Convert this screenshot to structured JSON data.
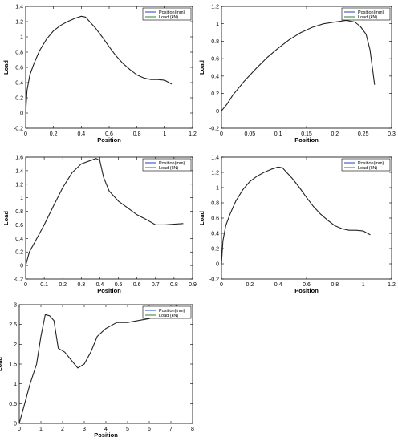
{
  "chart_data": [
    {
      "type": "line",
      "xlabel": "Position",
      "ylabel": "Load",
      "xlim": [
        0,
        1.2
      ],
      "ylim": [
        -0.2,
        1.4
      ],
      "xticks": [
        "0",
        "0.2",
        "0.4",
        "0.6",
        "0.8",
        "1",
        "1.2"
      ],
      "yticks": [
        "-0.2",
        "0",
        "0.2",
        "0.4",
        "0.6",
        "0.8",
        "1",
        "1.2",
        "1.4"
      ],
      "legend": {
        "placement": "top-right",
        "entries": [
          {
            "label": "Position(mm)",
            "color": "#1f3fbf"
          },
          {
            "label": "Load (kN)",
            "color": "#2e7d32"
          }
        ]
      },
      "series": [
        {
          "color": "#222222",
          "x": [
            0,
            0.01,
            0.03,
            0.06,
            0.1,
            0.15,
            0.2,
            0.25,
            0.3,
            0.35,
            0.4,
            0.43,
            0.45,
            0.5,
            0.55,
            0.6,
            0.65,
            0.7,
            0.75,
            0.8,
            0.85,
            0.9,
            0.95,
            1.0,
            1.05
          ],
          "y": [
            0,
            0.3,
            0.5,
            0.65,
            0.82,
            0.97,
            1.08,
            1.15,
            1.2,
            1.24,
            1.27,
            1.26,
            1.22,
            1.12,
            1.0,
            0.87,
            0.75,
            0.65,
            0.57,
            0.5,
            0.46,
            0.44,
            0.44,
            0.43,
            0.38
          ]
        }
      ]
    },
    {
      "type": "line",
      "xlabel": "Position",
      "ylabel": "Load",
      "xlim": [
        0,
        0.3
      ],
      "ylim": [
        -0.2,
        1.2
      ],
      "xticks": [
        "0",
        "0.05",
        "0.1",
        "0.15",
        "0.2",
        "0.25",
        "0.3"
      ],
      "yticks": [
        "-0.2",
        "0",
        "0.2",
        "0.4",
        "0.6",
        "0.8",
        "1",
        "1.2"
      ],
      "legend": {
        "placement": "top-right",
        "entries": [
          {
            "label": "Position(mm)",
            "color": "#1f3fbf"
          },
          {
            "label": "Load (kN)",
            "color": "#2e7d32"
          }
        ]
      },
      "series": [
        {
          "color": "#222222",
          "x": [
            0,
            0.01,
            0.02,
            0.04,
            0.06,
            0.08,
            0.1,
            0.12,
            0.14,
            0.16,
            0.18,
            0.2,
            0.22,
            0.235,
            0.245,
            0.255,
            0.262,
            0.267,
            0.27
          ],
          "y": [
            0,
            0.08,
            0.18,
            0.34,
            0.48,
            0.61,
            0.72,
            0.82,
            0.9,
            0.96,
            1.0,
            1.02,
            1.04,
            1.02,
            0.97,
            0.88,
            0.7,
            0.45,
            0.3
          ]
        }
      ]
    },
    {
      "type": "line",
      "xlabel": "Position",
      "ylabel": "Load",
      "xlim": [
        0,
        0.9
      ],
      "ylim": [
        -0.2,
        1.6
      ],
      "xticks": [
        "0",
        "0.1",
        "0.2",
        "0.3",
        "0.4",
        "0.5",
        "0.6",
        "0.7",
        "0.8",
        "0.9"
      ],
      "yticks": [
        "-0.2",
        "0",
        "0.2",
        "0.4",
        "0.6",
        "0.8",
        "1",
        "1.2",
        "1.4",
        "1.6"
      ],
      "legend": {
        "placement": "top-right",
        "entries": [
          {
            "label": "Position(mm)",
            "color": "#1f3fbf"
          },
          {
            "label": "Load (kN)",
            "color": "#2e7d32"
          }
        ]
      },
      "series": [
        {
          "color": "#222222",
          "x": [
            0,
            0.02,
            0.05,
            0.1,
            0.15,
            0.2,
            0.25,
            0.3,
            0.35,
            0.38,
            0.4,
            0.42,
            0.45,
            0.5,
            0.55,
            0.6,
            0.65,
            0.7,
            0.75,
            0.8,
            0.85
          ],
          "y": [
            0,
            0.2,
            0.35,
            0.6,
            0.88,
            1.15,
            1.37,
            1.5,
            1.55,
            1.58,
            1.55,
            1.3,
            1.1,
            0.95,
            0.85,
            0.75,
            0.68,
            0.6,
            0.6,
            0.61,
            0.62
          ]
        }
      ]
    },
    {
      "type": "line",
      "xlabel": "Position",
      "ylabel": "Load",
      "xlim": [
        0,
        1.2
      ],
      "ylim": [
        -0.2,
        1.4
      ],
      "xticks": [
        "0",
        "0.2",
        "0.4",
        "0.6",
        "0.8",
        "1",
        "1.2"
      ],
      "yticks": [
        "-0.2",
        "0",
        "0.2",
        "0.4",
        "0.6",
        "0.8",
        "1",
        "1.2",
        "1.4"
      ],
      "legend": {
        "placement": "top-right",
        "entries": [
          {
            "label": "Position(mm)",
            "color": "#1f3fbf"
          },
          {
            "label": "Load (kN)",
            "color": "#2e7d32"
          }
        ]
      },
      "series": [
        {
          "color": "#222222",
          "x": [
            0,
            0.01,
            0.03,
            0.06,
            0.1,
            0.15,
            0.2,
            0.25,
            0.3,
            0.35,
            0.4,
            0.43,
            0.45,
            0.5,
            0.55,
            0.6,
            0.65,
            0.7,
            0.75,
            0.8,
            0.85,
            0.9,
            0.95,
            1.0,
            1.05
          ],
          "y": [
            0,
            0.3,
            0.5,
            0.65,
            0.82,
            0.97,
            1.08,
            1.15,
            1.2,
            1.24,
            1.27,
            1.26,
            1.22,
            1.12,
            1.0,
            0.87,
            0.75,
            0.65,
            0.57,
            0.5,
            0.46,
            0.44,
            0.44,
            0.43,
            0.38
          ]
        }
      ]
    },
    {
      "type": "line",
      "xlabel": "Position",
      "ylabel": "Load",
      "xlim": [
        0,
        8
      ],
      "ylim": [
        0,
        3
      ],
      "xticks": [
        "0",
        "1",
        "2",
        "3",
        "4",
        "5",
        "6",
        "7",
        "8"
      ],
      "yticks": [
        "0",
        "0.5",
        "1",
        "1.5",
        "2",
        "2.5",
        "3"
      ],
      "legend": {
        "placement": "top-right",
        "entries": [
          {
            "label": "Position(mm)",
            "color": "#1f3fbf"
          },
          {
            "label": "Load (kN)",
            "color": "#2e7d32"
          }
        ]
      },
      "series": [
        {
          "color": "#222222",
          "x": [
            0,
            0.2,
            0.5,
            0.8,
            1.0,
            1.2,
            1.4,
            1.6,
            1.8,
            2.1,
            2.4,
            2.7,
            3.0,
            3.3,
            3.6,
            4.0,
            4.5,
            5.0,
            5.5,
            6.0,
            6.5,
            7.0,
            7.3
          ],
          "y": [
            0,
            0.4,
            1.0,
            1.5,
            2.2,
            2.75,
            2.72,
            2.6,
            1.9,
            1.8,
            1.6,
            1.4,
            1.5,
            1.8,
            2.2,
            2.4,
            2.55,
            2.55,
            2.6,
            2.65,
            2.8,
            2.9,
            2.98
          ]
        }
      ]
    }
  ]
}
